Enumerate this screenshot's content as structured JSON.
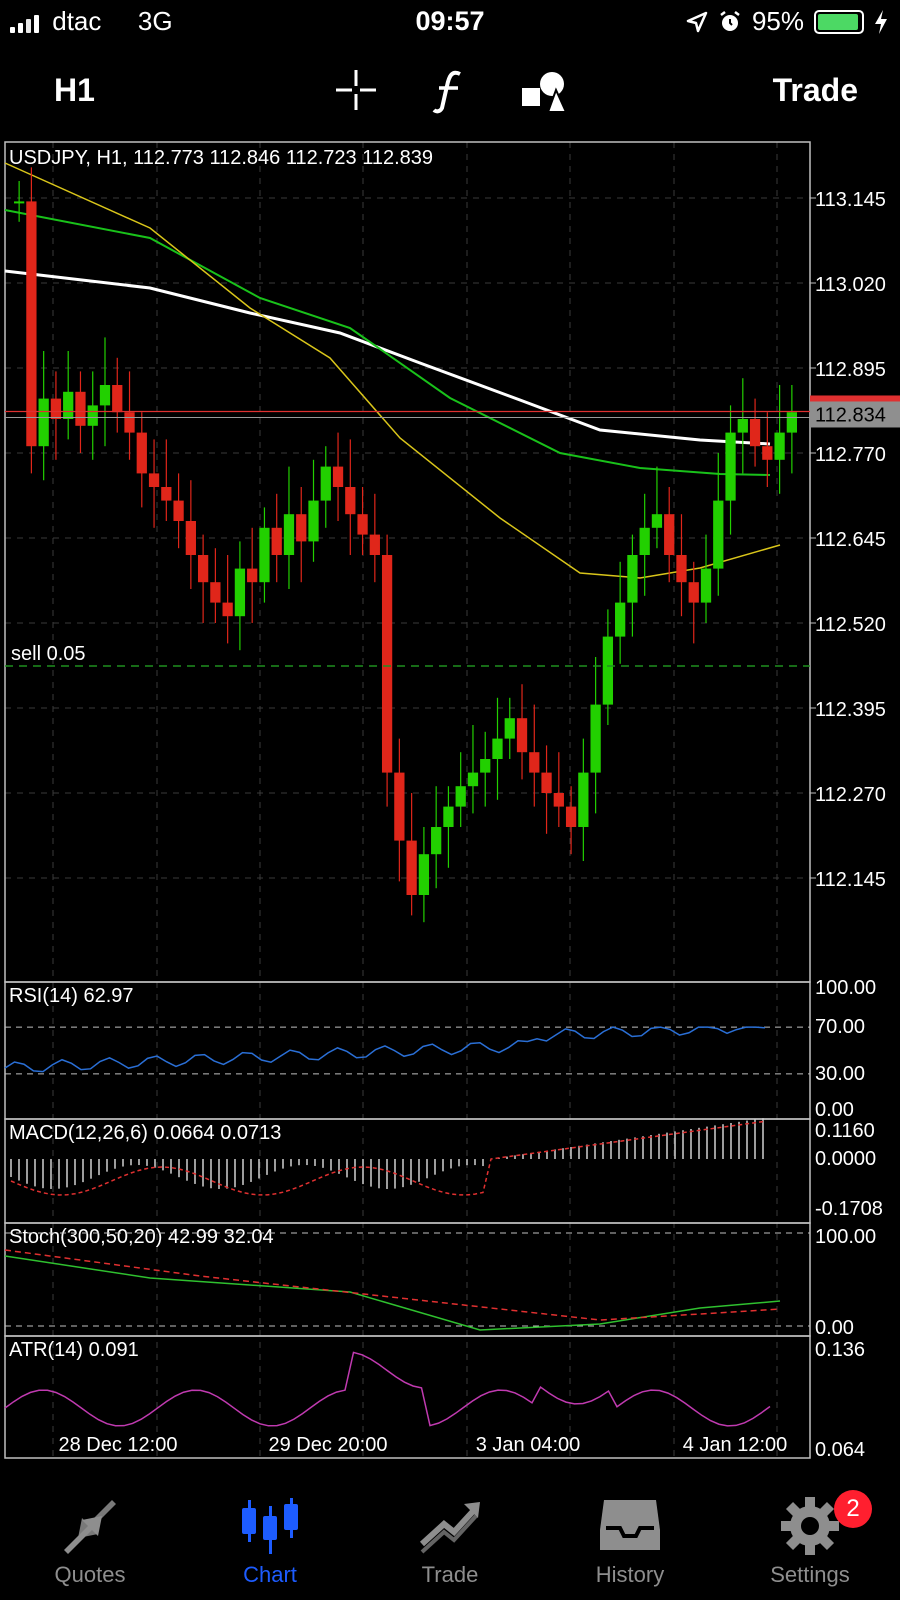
{
  "status_bar": {
    "carrier": "dtac",
    "network": "3G",
    "time": "09:57",
    "battery_percent": "95%",
    "battery_level": 0.95
  },
  "toolbar": {
    "timeframe": "H1",
    "trade_label": "Trade",
    "crosshair_icon": "crosshair-icon",
    "indicators_icon": "function-icon",
    "objects_icon": "shapes-icon"
  },
  "chart": {
    "header": "USDJPY, H1, 112.773 112.846 112.723 112.839",
    "current_price": "112.834",
    "sell_order_label": "sell 0.05",
    "price_ticks": [
      "113.145",
      "113.020",
      "112.895",
      "112.770",
      "112.645",
      "112.520",
      "112.395",
      "112.270",
      "112.145"
    ],
    "time_ticks": [
      "28 Dec 12:00",
      "29 Dec 20:00",
      "3 Jan 04:00",
      "4 Jan 12:00"
    ],
    "colors": {
      "bull": "#22d000",
      "bear": "#e0261a",
      "ma_white": "#ffffff",
      "ma_green": "#19c11a",
      "ma_yellow": "#d9c51a",
      "rsi": "#2a6fd6",
      "atr": "#c03ab0",
      "macd_signal": "#e03030",
      "stoch_main": "#2fc02f",
      "stoch_signal": "#e03030",
      "sell_line": "#1f8f1f",
      "price_line": "#e03030"
    }
  },
  "indicators": {
    "rsi": {
      "label": "RSI(14) 62.97",
      "ticks": [
        "100.00",
        "70.00",
        "30.00",
        "0.00"
      ]
    },
    "macd": {
      "label": "MACD(12,26,6) 0.0664 0.0713",
      "ticks": [
        "0.1160",
        "0.0000",
        "-0.1708"
      ]
    },
    "stoch": {
      "label": "Stoch(300,50,20) 42.99 32.04",
      "ticks": [
        "100.00",
        "0.00"
      ]
    },
    "atr": {
      "label": "ATR(14) 0.091",
      "ticks": [
        "0.136",
        "0.064"
      ]
    }
  },
  "tabs": [
    {
      "label": "Quotes",
      "icon": "quotes-icon",
      "active": false
    },
    {
      "label": "Chart",
      "icon": "chart-icon",
      "active": true
    },
    {
      "label": "Trade",
      "icon": "trade-icon",
      "active": false
    },
    {
      "label": "History",
      "icon": "history-icon",
      "active": false
    },
    {
      "label": "Settings",
      "icon": "settings-icon",
      "active": false,
      "badge": "2"
    }
  ]
}
